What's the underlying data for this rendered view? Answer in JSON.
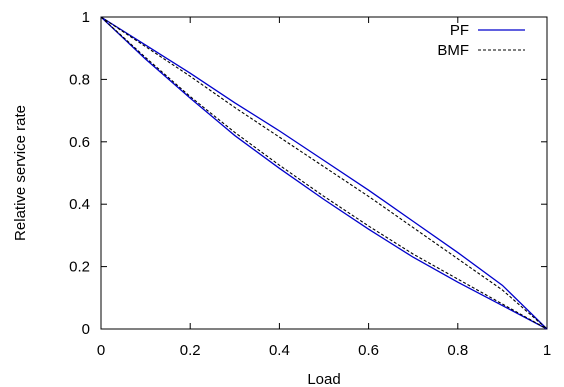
{
  "chart_data": {
    "type": "line",
    "xlabel": "Load",
    "ylabel": "Relative service rate",
    "xlim": [
      0,
      1
    ],
    "ylim": [
      0,
      1
    ],
    "xticks": [
      "0",
      "0.2",
      "0.4",
      "0.6",
      "0.8",
      "1"
    ],
    "yticks": [
      "0",
      "0.2",
      "0.4",
      "0.6",
      "0.8",
      "1"
    ],
    "legend_position": "top-right",
    "series": [
      {
        "name": "PF",
        "color": "#0000cc",
        "dash": "solid",
        "curves": [
          {
            "x": [
              0,
              0.1,
              0.2,
              0.3,
              0.4,
              0.5,
              0.6,
              0.7,
              0.8,
              0.9,
              1.0
            ],
            "y": [
              1,
              0.91,
              0.82,
              0.725,
              0.635,
              0.54,
              0.445,
              0.345,
              0.245,
              0.14,
              0
            ]
          },
          {
            "x": [
              0,
              0.1,
              0.2,
              0.3,
              0.4,
              0.5,
              0.6,
              0.7,
              0.8,
              0.9,
              1.0
            ],
            "y": [
              1,
              0.865,
              0.74,
              0.62,
              0.515,
              0.415,
              0.32,
              0.23,
              0.15,
              0.075,
              0
            ]
          }
        ]
      },
      {
        "name": "BMF",
        "color": "#000000",
        "dash": "dashed",
        "curves": [
          {
            "x": [
              0,
              0.1,
              0.2,
              0.3,
              0.4,
              0.5,
              0.6,
              0.7,
              0.8,
              0.9,
              1.0
            ],
            "y": [
              1,
              0.905,
              0.81,
              0.71,
              0.615,
              0.52,
              0.425,
              0.325,
              0.225,
              0.125,
              0
            ]
          },
          {
            "x": [
              0,
              0.1,
              0.2,
              0.3,
              0.4,
              0.5,
              0.6,
              0.7,
              0.8,
              0.9,
              1.0
            ],
            "y": [
              1,
              0.87,
              0.745,
              0.63,
              0.525,
              0.425,
              0.33,
              0.24,
              0.16,
              0.08,
              0
            ]
          }
        ]
      }
    ]
  }
}
